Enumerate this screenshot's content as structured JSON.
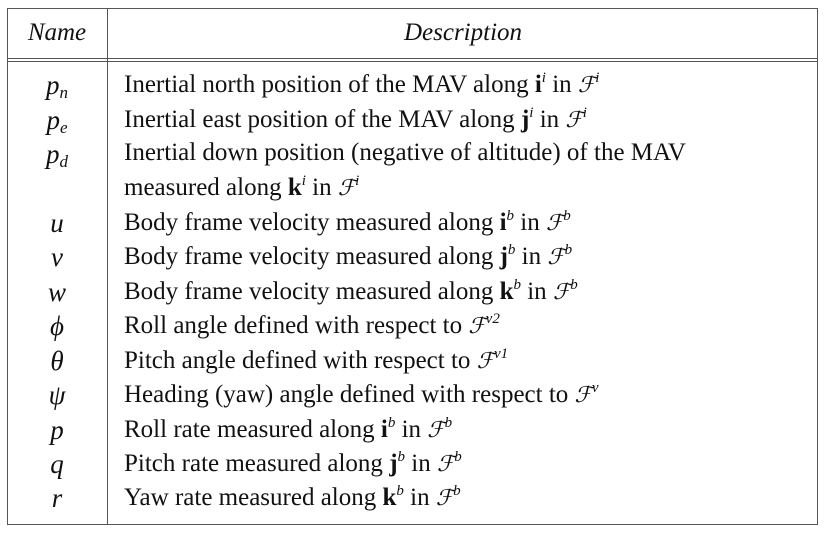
{
  "headers": {
    "name": "Name",
    "description": "Description"
  },
  "rows": [
    {
      "sym": "p",
      "sub": "n",
      "parts": [
        {
          "t": "Inertial north position of the MAV along "
        },
        {
          "t": "i",
          "b": true
        },
        {
          "t": "i",
          "sup": true
        },
        {
          "t": " in "
        },
        {
          "t": "ℱ",
          "script": true
        },
        {
          "t": "i",
          "sup": true
        }
      ]
    },
    {
      "sym": "p",
      "sub": "e",
      "parts": [
        {
          "t": "Inertial east position of the MAV along "
        },
        {
          "t": "j",
          "b": true
        },
        {
          "t": "i",
          "sup": true
        },
        {
          "t": " in "
        },
        {
          "t": "ℱ",
          "script": true
        },
        {
          "t": "i",
          "sup": true
        }
      ]
    },
    {
      "sym": "p",
      "sub": "d",
      "parts": [
        {
          "t": "Inertial down position (negative of altitude) of the MAV"
        }
      ]
    },
    {
      "sym": "",
      "sub": "",
      "parts": [
        {
          "t": "measured along "
        },
        {
          "t": "k",
          "b": true
        },
        {
          "t": "i",
          "sup": true
        },
        {
          "t": " in "
        },
        {
          "t": "ℱ",
          "script": true
        },
        {
          "t": "i",
          "sup": true
        }
      ]
    },
    {
      "sym": "u",
      "sub": "",
      "parts": [
        {
          "t": "Body frame velocity measured along "
        },
        {
          "t": "i",
          "b": true
        },
        {
          "t": "b",
          "sup": true
        },
        {
          "t": " in "
        },
        {
          "t": "ℱ",
          "script": true
        },
        {
          "t": "b",
          "sup": true
        }
      ]
    },
    {
      "sym": "v",
      "sub": "",
      "parts": [
        {
          "t": "Body frame velocity measured along "
        },
        {
          "t": "j",
          "b": true
        },
        {
          "t": "b",
          "sup": true
        },
        {
          "t": " in "
        },
        {
          "t": "ℱ",
          "script": true
        },
        {
          "t": "b",
          "sup": true
        }
      ]
    },
    {
      "sym": "w",
      "sub": "",
      "parts": [
        {
          "t": "Body frame velocity measured along "
        },
        {
          "t": "k",
          "b": true
        },
        {
          "t": "b",
          "sup": true
        },
        {
          "t": " in "
        },
        {
          "t": "ℱ",
          "script": true
        },
        {
          "t": "b",
          "sup": true
        }
      ]
    },
    {
      "sym": "ϕ",
      "sub": "",
      "parts": [
        {
          "t": "Roll angle defined with respect to "
        },
        {
          "t": "ℱ",
          "script": true
        },
        {
          "t": "v2",
          "sup": true
        }
      ]
    },
    {
      "sym": "θ",
      "sub": "",
      "parts": [
        {
          "t": "Pitch angle defined with respect to "
        },
        {
          "t": "ℱ",
          "script": true
        },
        {
          "t": "v1",
          "sup": true
        }
      ]
    },
    {
      "sym": "ψ",
      "sub": "",
      "parts": [
        {
          "t": "Heading (yaw) angle defined with respect to "
        },
        {
          "t": "ℱ",
          "script": true
        },
        {
          "t": "v",
          "sup": true
        }
      ]
    },
    {
      "sym": "p",
      "sub": "",
      "parts": [
        {
          "t": "Roll rate measured along "
        },
        {
          "t": "i",
          "b": true
        },
        {
          "t": "b",
          "sup": true
        },
        {
          "t": " in "
        },
        {
          "t": "ℱ",
          "script": true
        },
        {
          "t": "b",
          "sup": true
        }
      ]
    },
    {
      "sym": "q",
      "sub": "",
      "parts": [
        {
          "t": "Pitch rate measured along "
        },
        {
          "t": "j",
          "b": true
        },
        {
          "t": "b",
          "sup": true
        },
        {
          "t": " in "
        },
        {
          "t": "ℱ",
          "script": true
        },
        {
          "t": "b",
          "sup": true
        }
      ]
    },
    {
      "sym": "r",
      "sub": "",
      "parts": [
        {
          "t": "Yaw rate measured along "
        },
        {
          "t": "k",
          "b": true
        },
        {
          "t": "b",
          "sup": true
        },
        {
          "t": " in "
        },
        {
          "t": "ℱ",
          "script": true
        },
        {
          "t": "b",
          "sup": true
        }
      ]
    }
  ]
}
